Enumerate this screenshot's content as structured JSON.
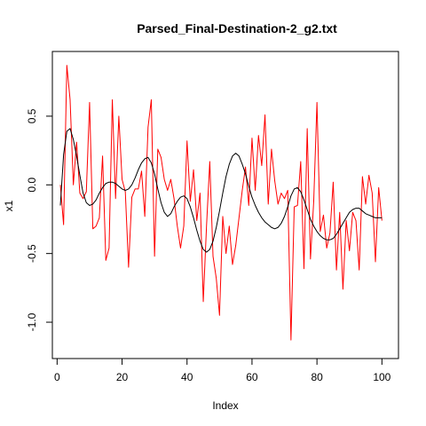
{
  "chart_data": {
    "type": "line",
    "title": "Parsed_Final-Destination-2_g2.txt",
    "xlabel": "Index",
    "ylabel": "x1",
    "xlim": [
      1,
      101
    ],
    "ylim": [
      -1.2,
      0.9
    ],
    "x_ticks": [
      0,
      20,
      40,
      60,
      80,
      100
    ],
    "x_tick_labels": [
      "0",
      "20",
      "40",
      "60",
      "80",
      "100"
    ],
    "y_ticks": [
      -1.0,
      -0.5,
      0.0,
      0.5
    ],
    "y_tick_labels": [
      "-1.0",
      "-0.5",
      "0.0",
      "0.5"
    ],
    "grid": false,
    "legend": "none",
    "series": [
      {
        "color": "#ff0000",
        "x": [
          1,
          2,
          3,
          4,
          5,
          6,
          7,
          8,
          9,
          10,
          11,
          12,
          13,
          14,
          15,
          16,
          17,
          18,
          19,
          20,
          21,
          22,
          23,
          24,
          25,
          26,
          27,
          28,
          29,
          30,
          31,
          32,
          33,
          34,
          35,
          36,
          37,
          38,
          39,
          40,
          41,
          42,
          43,
          44,
          45,
          46,
          47,
          48,
          49,
          50,
          51,
          52,
          53,
          54,
          55,
          56,
          57,
          58,
          59,
          60,
          61,
          62,
          63,
          64,
          65,
          66,
          67,
          68,
          69,
          70,
          71,
          72,
          73,
          74,
          75,
          76,
          77,
          78,
          79,
          80,
          81,
          82,
          83,
          84,
          85,
          86,
          87,
          88,
          89,
          90,
          91,
          92,
          93,
          94,
          95,
          96,
          97,
          98,
          99,
          100
        ],
        "values": [
          0.0,
          -0.29,
          0.87,
          0.62,
          0.0,
          0.31,
          -0.06,
          -0.1,
          -0.05,
          0.6,
          -0.32,
          -0.3,
          -0.24,
          0.21,
          -0.55,
          -0.46,
          0.62,
          -0.1,
          0.5,
          0.04,
          -0.05,
          -0.6,
          -0.09,
          -0.03,
          -0.03,
          0.1,
          -0.23,
          0.42,
          0.62,
          -0.52,
          0.26,
          0.2,
          0.04,
          -0.04,
          0.04,
          -0.1,
          -0.3,
          -0.46,
          -0.3,
          0.32,
          -0.12,
          0.11,
          -0.26,
          -0.06,
          -0.85,
          -0.3,
          0.17,
          -0.52,
          -0.68,
          -0.95,
          -0.23,
          -0.5,
          -0.3,
          -0.58,
          -0.44,
          -0.24,
          -0.04,
          0.13,
          -0.15,
          0.34,
          -0.04,
          0.36,
          0.14,
          0.51,
          -0.14,
          0.26,
          0.03,
          -0.14,
          -0.06,
          -0.1,
          -0.04,
          -1.13,
          -0.16,
          -0.15,
          0.17,
          -0.61,
          0.41,
          -0.54,
          -0.12,
          0.6,
          -0.34,
          -0.22,
          -0.46,
          -0.35,
          0.02,
          -0.62,
          -0.2,
          -0.76,
          -0.26,
          -0.48,
          -0.2,
          -0.26,
          -0.62,
          0.06,
          -0.14,
          0.07,
          -0.06,
          -0.56,
          -0.02,
          -0.26
        ]
      },
      {
        "color": "#000000",
        "x": [
          1,
          2,
          3,
          4,
          5,
          6,
          7,
          8,
          9,
          10,
          11,
          12,
          13,
          14,
          15,
          16,
          17,
          18,
          19,
          20,
          21,
          22,
          23,
          24,
          25,
          26,
          27,
          28,
          29,
          30,
          31,
          32,
          33,
          34,
          35,
          36,
          37,
          38,
          39,
          40,
          41,
          42,
          43,
          44,
          45,
          46,
          47,
          48,
          49,
          50,
          51,
          52,
          53,
          54,
          55,
          56,
          57,
          58,
          59,
          60,
          61,
          62,
          63,
          64,
          65,
          66,
          67,
          68,
          69,
          70,
          71,
          72,
          73,
          74,
          75,
          76,
          77,
          78,
          79,
          80,
          81,
          82,
          83,
          84,
          85,
          86,
          87,
          88,
          89,
          90,
          91,
          92,
          93,
          94,
          95,
          96,
          97,
          98,
          99,
          100
        ],
        "values": [
          -0.15,
          0.22,
          0.39,
          0.41,
          0.33,
          0.21,
          0.07,
          -0.06,
          -0.13,
          -0.15,
          -0.14,
          -0.11,
          -0.06,
          -0.02,
          0.01,
          0.02,
          0.02,
          0.01,
          -0.01,
          -0.03,
          -0.04,
          -0.03,
          0.0,
          0.05,
          0.11,
          0.16,
          0.19,
          0.2,
          0.16,
          0.08,
          -0.03,
          -0.13,
          -0.2,
          -0.23,
          -0.21,
          -0.16,
          -0.12,
          -0.09,
          -0.08,
          -0.1,
          -0.16,
          -0.24,
          -0.33,
          -0.41,
          -0.47,
          -0.49,
          -0.47,
          -0.41,
          -0.31,
          -0.19,
          -0.06,
          0.06,
          0.15,
          0.21,
          0.23,
          0.21,
          0.15,
          0.08,
          -0.01,
          -0.09,
          -0.15,
          -0.2,
          -0.24,
          -0.27,
          -0.29,
          -0.31,
          -0.32,
          -0.31,
          -0.28,
          -0.23,
          -0.16,
          -0.08,
          -0.03,
          -0.02,
          -0.05,
          -0.11,
          -0.18,
          -0.25,
          -0.3,
          -0.34,
          -0.37,
          -0.39,
          -0.4,
          -0.4,
          -0.39,
          -0.36,
          -0.32,
          -0.28,
          -0.24,
          -0.2,
          -0.18,
          -0.17,
          -0.17,
          -0.19,
          -0.21,
          -0.22,
          -0.23,
          -0.24,
          -0.24,
          -0.24
        ]
      }
    ]
  }
}
